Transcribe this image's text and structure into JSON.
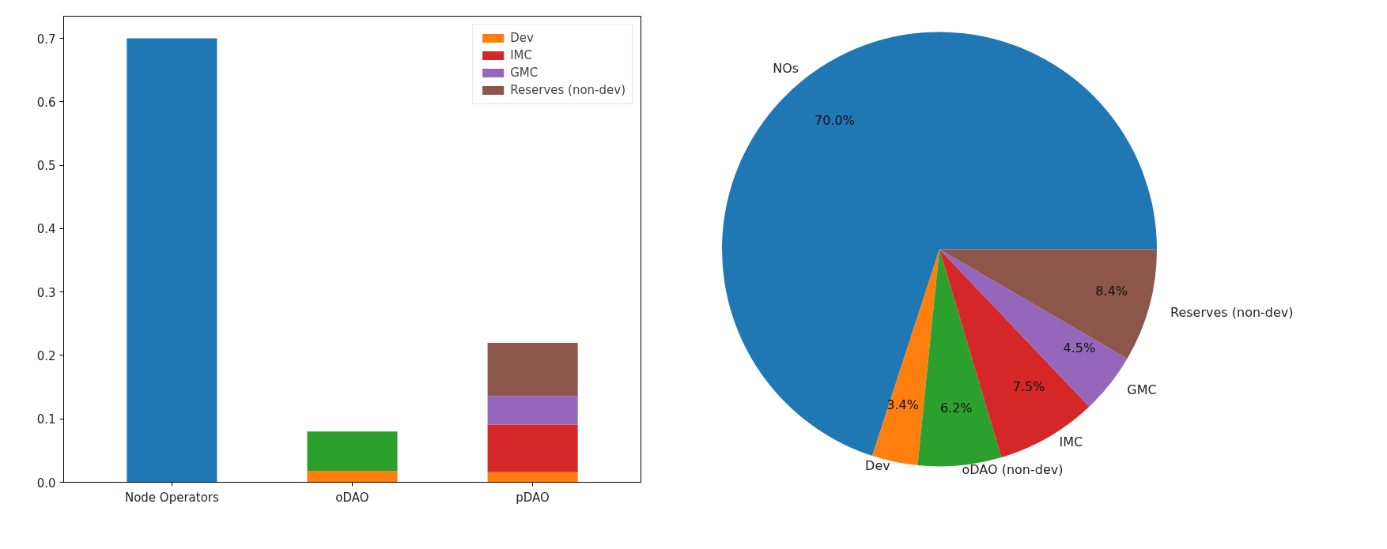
{
  "chart_data": [
    {
      "type": "bar",
      "stacked": true,
      "categories": [
        "Node Operators",
        "oDAO",
        "pDAO"
      ],
      "ylim": [
        0,
        0.735
      ],
      "yticks": [
        {
          "value": 0,
          "label": "0.0"
        },
        0.1,
        0.2,
        0.3,
        0.4,
        0.5,
        0.6,
        0.7
      ],
      "grid": false,
      "legend": "top right",
      "series": [
        {
          "color": "#1f77b4",
          "values": [
            0.7,
            null,
            null
          ]
        },
        {
          "name": "Dev",
          "color": "#ff7f0e",
          "values": [
            null,
            0.018,
            0.016
          ]
        },
        {
          "color": "#2ca02c",
          "values": [
            null,
            0.062,
            null
          ]
        },
        {
          "name": "IMC",
          "color": "#d62728",
          "values": [
            null,
            null,
            0.075
          ]
        },
        {
          "name": "GMC",
          "color": "#9467bd",
          "values": [
            null,
            null,
            0.045
          ]
        },
        {
          "name": "Reserves (non-dev)",
          "color": "#8c564b",
          "values": [
            null,
            null,
            0.084
          ]
        }
      ]
    },
    {
      "type": "pie",
      "categories": [
        "NOs",
        "Dev",
        "oDAO (non-dev)",
        "IMC",
        "GMC",
        "Reserves (non-dev)"
      ],
      "values": [
        70.0,
        3.4,
        6.2,
        7.5,
        4.5,
        8.4
      ],
      "colors": [
        "#1f77b4",
        "#ff7f0e",
        "#2ca02c",
        "#d62728",
        "#9467bd",
        "#8c564b"
      ],
      "value_labels": [
        "70.0%",
        "3.4%",
        "6.2%",
        "7.5%",
        "4.5%",
        "8.4%"
      ]
    }
  ]
}
